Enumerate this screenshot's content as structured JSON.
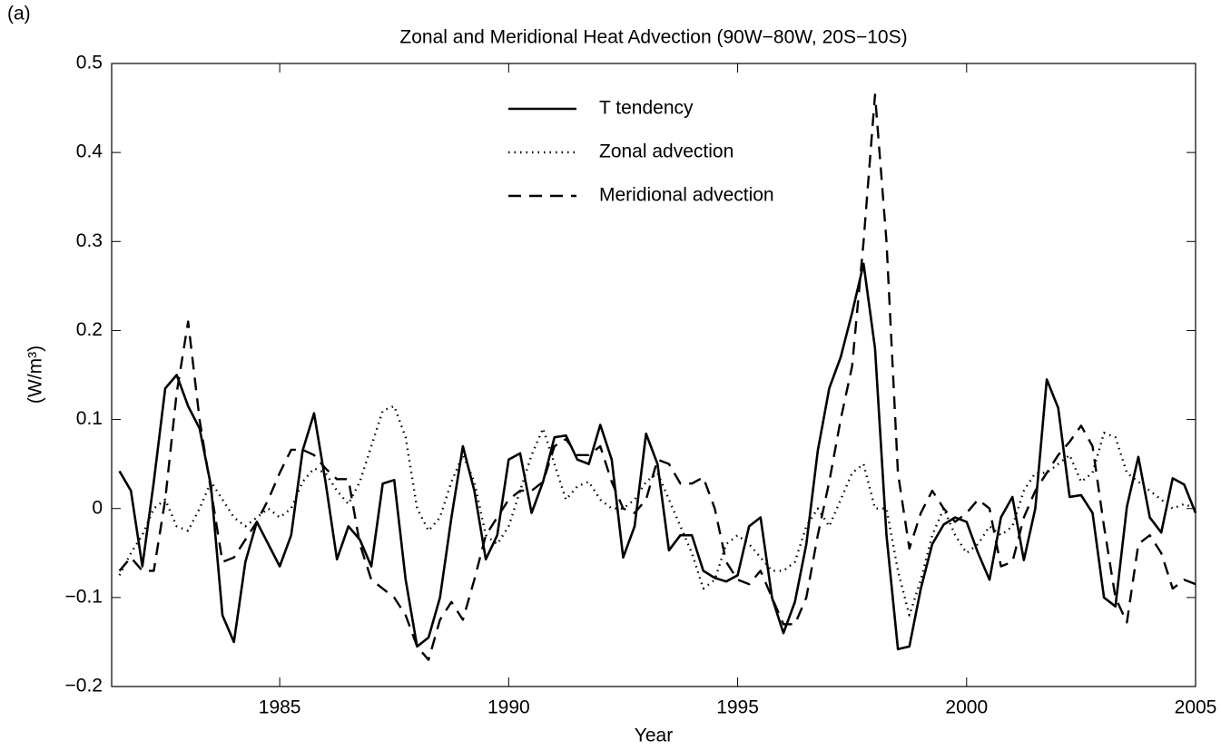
{
  "chart_data": {
    "type": "line",
    "panel_label": "(a)",
    "title": "Zonal and Meridional Heat Advection (90W−80W, 20S−10S)",
    "xlabel": "Year",
    "ylabel": "(W/m³)",
    "x": [
      1981.5,
      1981.75,
      1982,
      1982.25,
      1982.5,
      1982.75,
      1983,
      1983.25,
      1983.5,
      1983.75,
      1984,
      1984.25,
      1984.5,
      1984.75,
      1985,
      1985.25,
      1985.5,
      1985.75,
      1986,
      1986.25,
      1986.5,
      1986.75,
      1987,
      1987.25,
      1987.5,
      1987.75,
      1988,
      1988.25,
      1988.5,
      1988.75,
      1989,
      1989.25,
      1989.5,
      1989.75,
      1990,
      1990.25,
      1990.5,
      1990.75,
      1991,
      1991.25,
      1991.5,
      1991.75,
      1992,
      1992.25,
      1992.5,
      1992.75,
      1993,
      1993.25,
      1993.5,
      1993.75,
      1994,
      1994.25,
      1994.5,
      1994.75,
      1995,
      1995.25,
      1995.5,
      1995.75,
      1996,
      1996.25,
      1996.5,
      1996.75,
      1997,
      1997.25,
      1997.5,
      1997.75,
      1998,
      1998.25,
      1998.5,
      1998.75,
      1999,
      1999.25,
      1999.5,
      1999.75,
      2000,
      2000.25,
      2000.5,
      2000.75,
      2001,
      2001.25,
      2001.5,
      2001.75,
      2002,
      2002.25,
      2002.5,
      2002.75,
      2003,
      2003.25,
      2003.5,
      2003.75,
      2004,
      2004.25,
      2004.5,
      2004.75,
      2005
    ],
    "series": [
      {
        "name": "T tendency",
        "color": "#000000",
        "dash": "solid",
        "values": [
          0.042,
          0.02,
          -0.065,
          0.03,
          0.135,
          0.15,
          0.115,
          0.09,
          0.025,
          -0.12,
          -0.15,
          -0.06,
          -0.015,
          -0.04,
          -0.065,
          -0.03,
          0.065,
          0.107,
          0.03,
          -0.057,
          -0.02,
          -0.035,
          -0.065,
          0.028,
          0.032,
          -0.08,
          -0.155,
          -0.145,
          -0.1,
          -0.01,
          0.07,
          0.02,
          -0.057,
          -0.03,
          0.055,
          0.062,
          -0.005,
          0.03,
          0.08,
          0.082,
          0.055,
          0.05,
          0.094,
          0.055,
          -0.055,
          -0.02,
          0.084,
          0.05,
          -0.047,
          -0.03,
          -0.03,
          -0.07,
          -0.078,
          -0.082,
          -0.075,
          -0.02,
          -0.01,
          -0.1,
          -0.14,
          -0.105,
          -0.04,
          0.065,
          0.135,
          0.17,
          0.22,
          0.275,
          0.18,
          -0.03,
          -0.158,
          -0.155,
          -0.09,
          -0.04,
          -0.018,
          -0.01,
          -0.015,
          -0.05,
          -0.08,
          -0.01,
          0.013,
          -0.058,
          0.0,
          0.145,
          0.113,
          0.013,
          0.015,
          -0.005,
          -0.1,
          -0.11,
          0.002,
          0.058,
          -0.01,
          -0.027,
          0.034,
          0.027,
          -0.005
        ]
      },
      {
        "name": "Zonal advection",
        "color": "#000000",
        "dash": "dotted",
        "values": [
          -0.075,
          -0.05,
          -0.03,
          0.0,
          0.01,
          -0.02,
          -0.025,
          0.0,
          0.03,
          0.01,
          -0.01,
          -0.02,
          -0.01,
          0.0,
          -0.01,
          0.0,
          0.03,
          0.045,
          0.04,
          0.02,
          0.005,
          0.03,
          0.07,
          0.11,
          0.115,
          0.08,
          0.0,
          -0.025,
          -0.01,
          0.03,
          0.06,
          0.03,
          -0.03,
          -0.04,
          -0.02,
          0.02,
          0.06,
          0.09,
          0.05,
          0.01,
          0.025,
          0.03,
          0.01,
          0.0,
          0.0,
          0.01,
          0.03,
          0.04,
          0.01,
          -0.02,
          -0.05,
          -0.09,
          -0.08,
          -0.04,
          -0.03,
          -0.04,
          -0.055,
          -0.07,
          -0.07,
          -0.06,
          -0.02,
          0.0,
          -0.02,
          0.01,
          0.04,
          0.05,
          0.0,
          0.0,
          -0.07,
          -0.12,
          -0.08,
          -0.03,
          0.0,
          -0.03,
          -0.05,
          -0.04,
          -0.02,
          -0.03,
          -0.02,
          0.02,
          0.04,
          0.04,
          0.05,
          0.06,
          0.03,
          0.04,
          0.085,
          0.08,
          0.04,
          0.03,
          0.02,
          0.01,
          0.0,
          0.005,
          0.0
        ]
      },
      {
        "name": "Meridional advection",
        "color": "#000000",
        "dash": "dashed",
        "values": [
          -0.07,
          -0.055,
          -0.07,
          -0.07,
          0.01,
          0.13,
          0.21,
          0.1,
          0.02,
          -0.06,
          -0.055,
          -0.035,
          -0.015,
          0.01,
          0.04,
          0.066,
          0.066,
          0.06,
          0.045,
          0.033,
          0.033,
          -0.04,
          -0.08,
          -0.09,
          -0.1,
          -0.12,
          -0.155,
          -0.17,
          -0.125,
          -0.105,
          -0.125,
          -0.08,
          -0.03,
          -0.01,
          0.01,
          0.02,
          0.02,
          0.03,
          0.07,
          0.078,
          0.06,
          0.06,
          0.07,
          0.03,
          0.0,
          -0.005,
          0.01,
          0.055,
          0.05,
          0.028,
          0.028,
          0.035,
          0.0,
          -0.06,
          -0.08,
          -0.085,
          -0.07,
          -0.1,
          -0.13,
          -0.13,
          -0.1,
          -0.03,
          0.03,
          0.1,
          0.16,
          0.3,
          0.465,
          0.3,
          0.04,
          -0.045,
          -0.005,
          0.02,
          0.0,
          -0.015,
          -0.005,
          0.01,
          0.0,
          -0.065,
          -0.06,
          -0.01,
          0.02,
          0.04,
          0.06,
          0.075,
          0.093,
          0.07,
          -0.02,
          -0.1,
          -0.128,
          -0.04,
          -0.03,
          -0.05,
          -0.09,
          -0.08,
          -0.085
        ]
      }
    ],
    "xlim": [
      1981.33,
      2005
    ],
    "xticks": [
      1985,
      1990,
      1995,
      2000,
      2005
    ],
    "ylim": [
      -0.2,
      0.5
    ],
    "yticks": [
      {
        "value": -0.2,
        "label": "−0.2"
      },
      {
        "value": -0.1,
        "label": "−0.1"
      },
      0,
      0.1,
      0.2,
      0.3,
      0.4,
      0.5
    ],
    "legend": "top"
  }
}
